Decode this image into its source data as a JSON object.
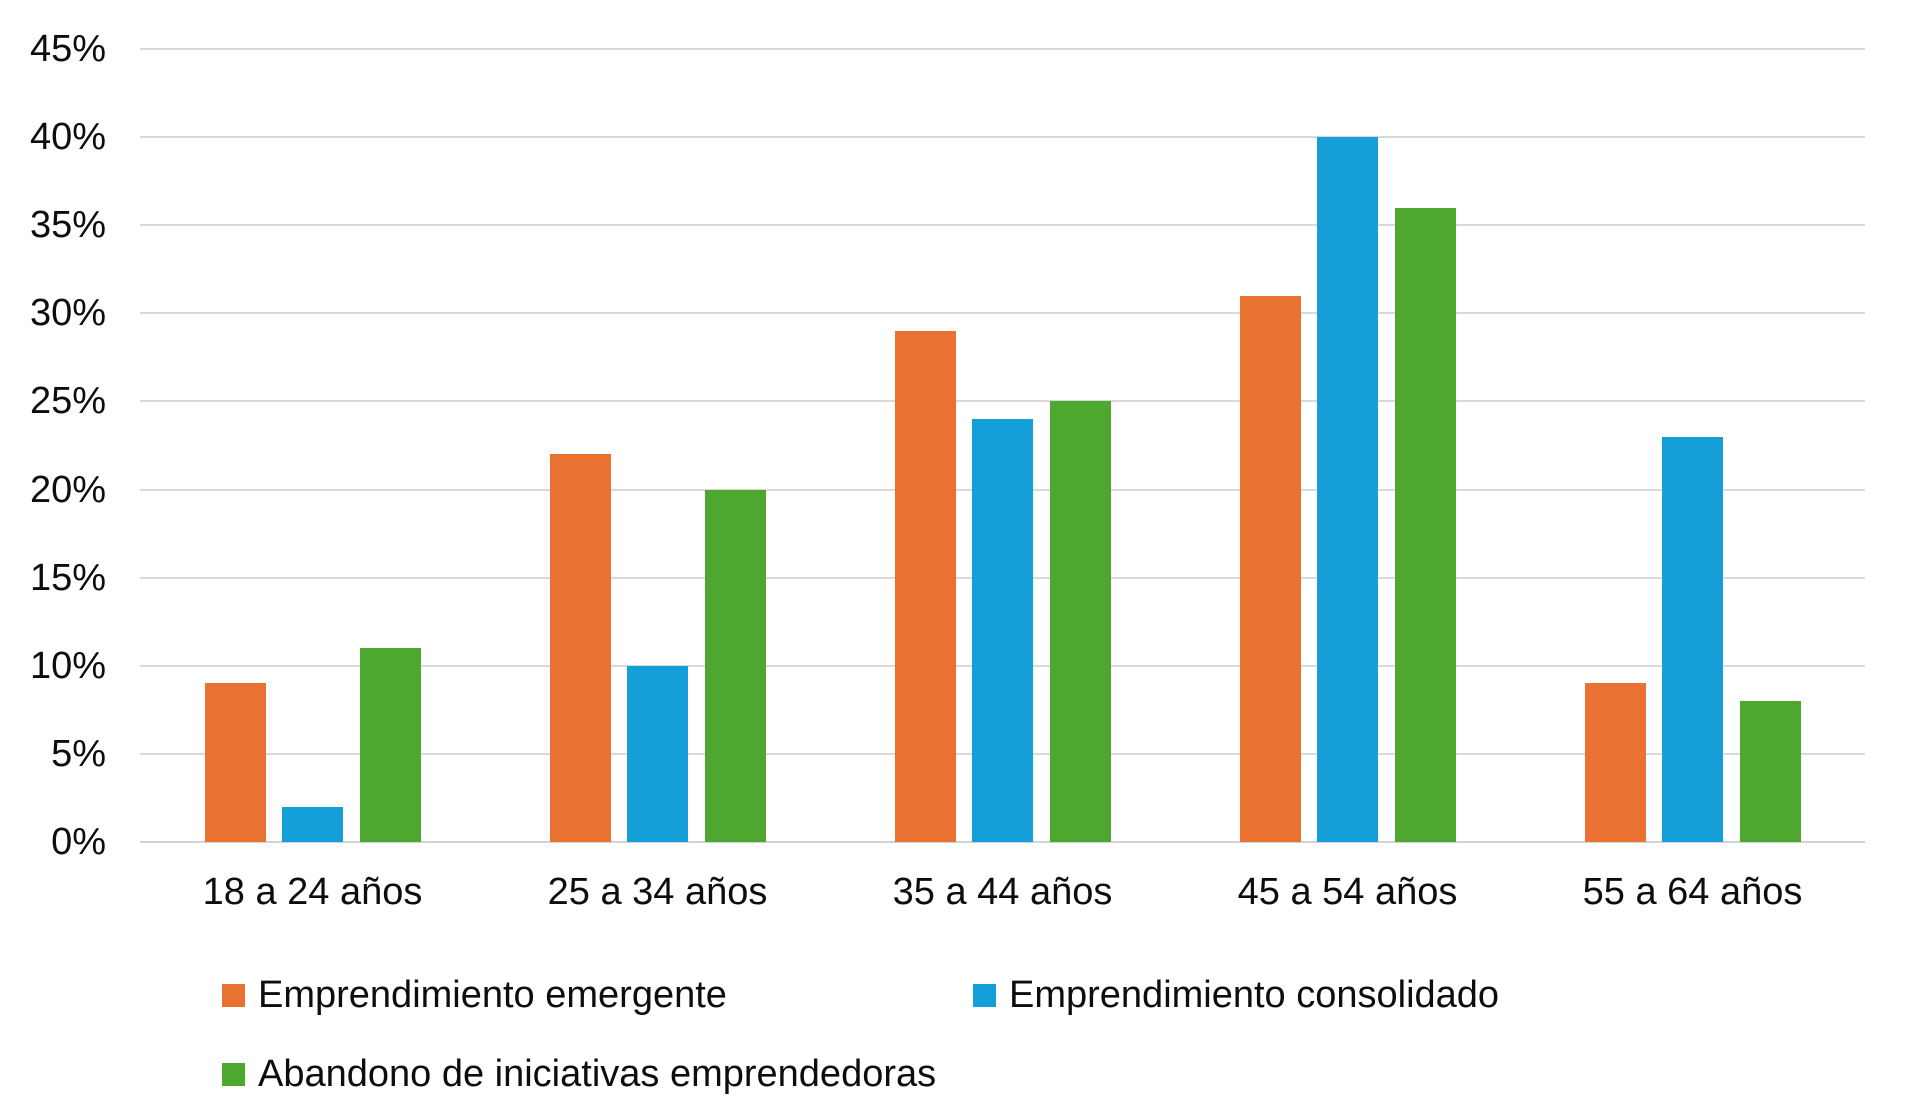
{
  "chart_data": {
    "type": "bar",
    "title": "",
    "categories": [
      "18 a 24 años",
      "25 a 34 años",
      "35 a 44 años",
      "45 a 54 años",
      "55 a 64 años"
    ],
    "y_ticks": [
      "0%",
      "5%",
      "10%",
      "15%",
      "20%",
      "25%",
      "30%",
      "35%",
      "40%",
      "45%"
    ],
    "ylim": [
      0,
      45
    ],
    "y_step": 5,
    "grid": true,
    "legend_position": "bottom-left",
    "series": [
      {
        "name": "Emprendimiento emergente",
        "color": "#E97132",
        "values": [
          9,
          22,
          29,
          31,
          9
        ]
      },
      {
        "name": "Emprendimiento consolidado",
        "color": "#149FD9",
        "values": [
          2,
          10,
          24,
          40,
          23
        ]
      },
      {
        "name": "Abandono de iniciativas emprendedoras",
        "color": "#4EA72E",
        "values": [
          11,
          20,
          25,
          36,
          8
        ]
      }
    ],
    "colors": {
      "gridline": "#D9D9D9",
      "axis_line": "#D3D3D3",
      "text": "#0D0D0D",
      "background": "#FFFFFF"
    }
  }
}
